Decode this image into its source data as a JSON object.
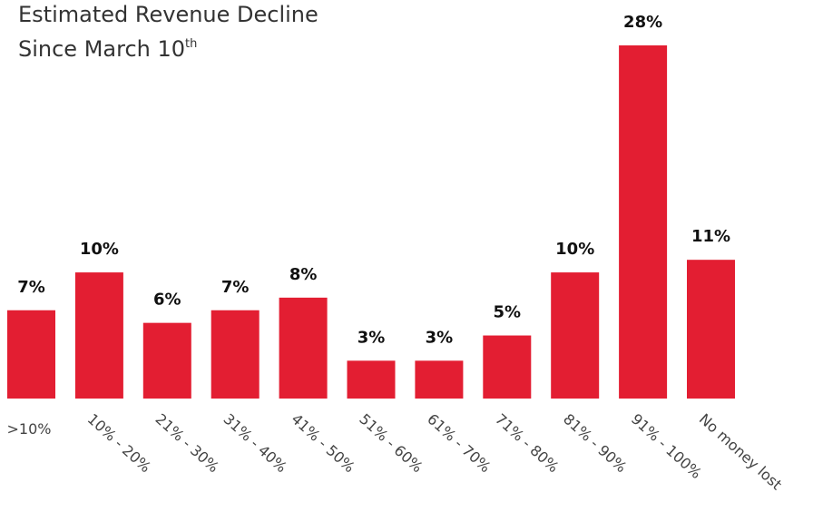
{
  "chart_data": {
    "type": "bar",
    "title": [
      "Estimated Revenue Decline",
      "Since March 10",
      "th"
    ],
    "categories": [
      ">10%",
      "10% - 20%",
      "21% - 30%",
      "31% - 40%",
      "41% - 50%",
      "51% - 60%",
      "61% - 70%",
      "71% - 80%",
      "81% - 90%",
      "91% - 100%",
      "No money lost"
    ],
    "values": [
      7,
      10,
      6,
      7,
      8,
      3,
      3,
      5,
      10,
      28,
      11
    ],
    "value_labels": [
      "7%",
      "10%",
      "6%",
      "7%",
      "8%",
      "3%",
      "3%",
      "5%",
      "10%",
      "28%",
      "11%"
    ],
    "color": "#e31e32",
    "ylim": [
      0,
      28
    ]
  }
}
